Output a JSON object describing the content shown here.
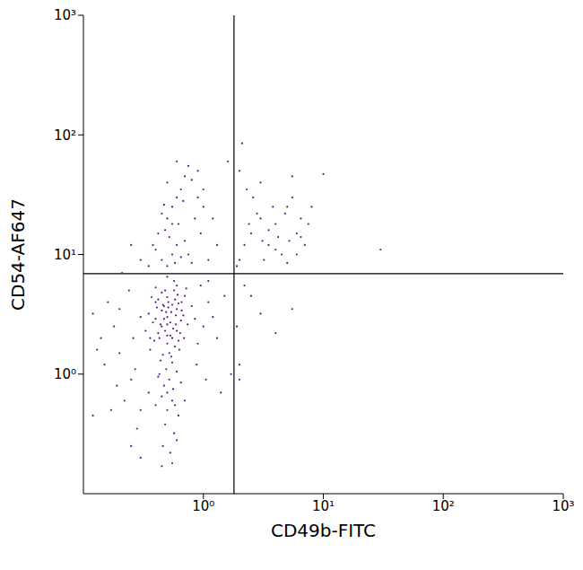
{
  "chart_data": {
    "type": "scatter",
    "x_label": "CD49b-FITC",
    "y_label": "CD54-AF647",
    "log": true,
    "color": "#5c1a86",
    "marker": "dot",
    "grid": false,
    "xlim": [
      0.1,
      1000
    ],
    "ylim": [
      0.1,
      1000
    ],
    "xticks": [
      {
        "value": 1,
        "label": "10⁰"
      },
      {
        "value": 10,
        "label": "10¹"
      },
      {
        "value": 100,
        "label": "10²"
      },
      {
        "value": 1000,
        "label": "10³"
      }
    ],
    "yticks": [
      {
        "value": 1,
        "label": "10⁰"
      },
      {
        "value": 10,
        "label": "10¹"
      },
      {
        "value": 100,
        "label": "10²"
      },
      {
        "value": 1000,
        "label": "10³"
      }
    ],
    "quadrant_lines": {
      "x": 1.8,
      "y": 6.9
    },
    "x": [
      0.5,
      0.45,
      0.6,
      0.55,
      0.4,
      0.65,
      0.5,
      0.35,
      0.7,
      0.48,
      0.52,
      0.42,
      0.58,
      0.62,
      0.38,
      0.46,
      0.56,
      0.68,
      0.44,
      0.6,
      0.5,
      0.36,
      0.54,
      0.74,
      0.47,
      0.41,
      0.63,
      0.57,
      0.49,
      0.33,
      0.8,
      0.45,
      0.53,
      0.39,
      0.66,
      0.51,
      0.43,
      0.59,
      0.72,
      0.48,
      0.3,
      0.55,
      0.62,
      0.4,
      0.5,
      0.46,
      0.85,
      0.58,
      0.37,
      0.64,
      0.52,
      0.47,
      0.56,
      0.6,
      0.42,
      0.5,
      0.65,
      0.55,
      0.45,
      0.58,
      0.5,
      0.62,
      0.4,
      0.48,
      0.57,
      0.35,
      0.7,
      0.46,
      0.6,
      0.53,
      0.55,
      0.45,
      0.3,
      0.25,
      0.2,
      0.18,
      0.15,
      0.22,
      0.28,
      0.14,
      0.16,
      0.2,
      0.24,
      0.13,
      0.19,
      0.26,
      0.12,
      0.21,
      0.27,
      0.17,
      0.9,
      1.0,
      1.1,
      0.95,
      1.2,
      0.88,
      1.05,
      1.3,
      1.5,
      1.1,
      0.5,
      0.55,
      0.45,
      0.6,
      0.4,
      0.52,
      0.65,
      0.48,
      0.58,
      0.7,
      0.5,
      0.55,
      0.6,
      0.45,
      0.65,
      0.5,
      0.7,
      0.75,
      0.6,
      0.8,
      0.55,
      0.42,
      0.85,
      0.9,
      0.38,
      0.35,
      0.75,
      0.95,
      1.0,
      0.68,
      0.3,
      0.25,
      0.8,
      1.1,
      1.3,
      1.2,
      1.0,
      0.9,
      0.62,
      0.47,
      0.5,
      0.55,
      0.45,
      0.6,
      0.43,
      0.57,
      0.51,
      0.49,
      0.66,
      0.4,
      0.53,
      0.47,
      0.59,
      0.44,
      0.61,
      0.5,
      0.54,
      0.42,
      0.69,
      0.36,
      2.5,
      3,
      3.5,
      4,
      5,
      4.5,
      6,
      3.2,
      2.8,
      5.5,
      2.2,
      4.2,
      3.8,
      6.5,
      7,
      5,
      2.6,
      3,
      5.5,
      4,
      2,
      6,
      7.5,
      3.5,
      4.8,
      5.2,
      2.4,
      8,
      6.5,
      3.1,
      1.9,
      2.0,
      2.1,
      10,
      30,
      1.6,
      2.3,
      1.9,
      2.5,
      5.5,
      4,
      2.2,
      2.0,
      1.7,
      3,
      2,
      1.4,
      0.25,
      0.3,
      0.12
    ],
    "values": [
      3.0,
      2.5,
      3.5,
      2.0,
      4.0,
      2.8,
      1.8,
      3.2,
      4.5,
      5.0,
      1.5,
      2.2,
      4.2,
      1.9,
      2.7,
      3.8,
      2.4,
      3.1,
      1.3,
      5.5,
      4.4,
      1.6,
      3.3,
      2.6,
      2.9,
      3.6,
      1.6,
      6.0,
      1.1,
      2.3,
      3.7,
      4.8,
      2.1,
      1.9,
      4.0,
      3.6,
      1.0,
      2.6,
      5.2,
      2.3,
      3.0,
      1.25,
      3.9,
      5.3,
      6.5,
      1.45,
      2.9,
      1.7,
      4.4,
      2.2,
      0.9,
      0.8,
      0.75,
      1.05,
      0.95,
      0.7,
      0.85,
      0.6,
      0.65,
      0.55,
      0.5,
      0.45,
      0.55,
      0.38,
      0.32,
      0.7,
      0.6,
      0.25,
      0.28,
      0.22,
      0.18,
      0.17,
      0.5,
      0.9,
      1.5,
      2.5,
      1.2,
      0.6,
      0.35,
      2.0,
      4.0,
      3.5,
      5.0,
      1.6,
      0.8,
      2.0,
      3.2,
      7.0,
      1.1,
      0.5,
      1.8,
      2.5,
      4.0,
      5.5,
      3.0,
      1.2,
      0.9,
      2.0,
      4.5,
      6.0,
      8.0,
      10,
      9,
      12,
      11,
      14,
      9.5,
      16,
      8.5,
      13,
      20,
      25,
      30,
      22,
      35,
      40,
      45,
      55,
      60,
      42,
      18,
      15,
      20,
      30,
      12,
      8,
      10,
      15,
      25,
      28,
      9,
      12,
      8.5,
      9,
      12,
      20,
      35,
      50,
      18,
      26,
      2.6,
      3.8,
      3.4,
      2.3,
      2.0,
      5.0,
      4.0,
      3.3,
      3.4,
      2.9,
      2.7,
      3.7,
      3.1,
      2.6,
      4.6,
      2.1,
      1.4,
      4.2,
      2.0,
      2.0,
      15,
      20,
      12,
      18,
      25,
      10,
      15,
      9,
      22,
      30,
      12,
      14,
      25,
      20,
      12,
      8.5,
      30,
      40,
      45,
      11,
      9,
      10,
      18,
      16,
      22,
      13,
      18,
      25,
      14,
      13,
      8,
      50,
      85,
      47,
      11,
      60,
      35,
      2.5,
      4.5,
      3.5,
      2.2,
      5.5,
      1.2,
      1.0,
      3.2,
      0.9,
      0.7,
      0.25,
      0.2,
      0.45
    ]
  }
}
